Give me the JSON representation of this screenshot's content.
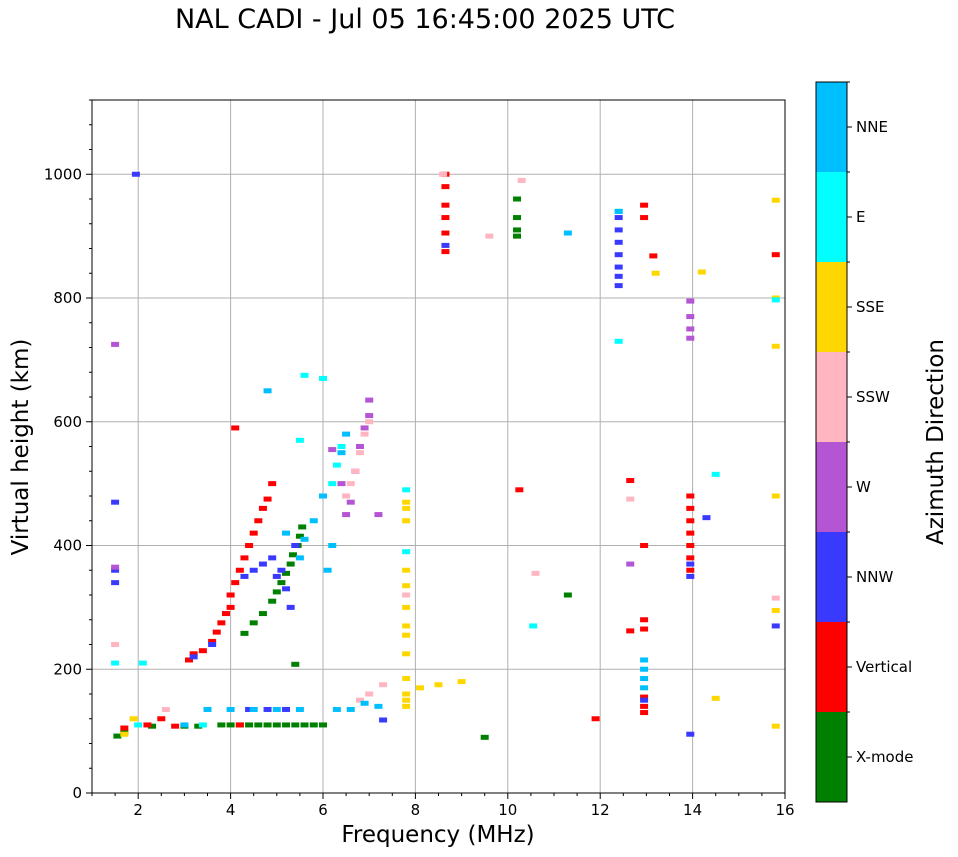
{
  "chart_data": {
    "type": "scatter",
    "title": "NAL CADI - Jul 05 16:45:00 2025 UTC",
    "xlabel": "Frequency (MHz)",
    "ylabel": "Virtual height (km)",
    "xlim": [
      1,
      16
    ],
    "ylim": [
      0,
      1120
    ],
    "xticks": [
      2,
      4,
      6,
      8,
      10,
      12,
      14,
      16
    ],
    "yticks": [
      0,
      200,
      400,
      600,
      800,
      1000
    ],
    "grid": true,
    "colorbar": {
      "label": "Azimuth Direction",
      "categories": [
        {
          "name": "X-mode",
          "color": "#008000"
        },
        {
          "name": "Vertical",
          "color": "#ff0000"
        },
        {
          "name": "NNW",
          "color": "#3a3aff"
        },
        {
          "name": "W",
          "color": "#b455d4"
        },
        {
          "name": "SSW",
          "color": "#ffb6c1"
        },
        {
          "name": "SSE",
          "color": "#ffd700"
        },
        {
          "name": "E",
          "color": "#00ffff"
        },
        {
          "name": "NNE",
          "color": "#00bfff"
        }
      ]
    },
    "series": [
      {
        "name": "X-mode",
        "points": [
          [
            1.55,
            92
          ],
          [
            1.7,
            98
          ],
          [
            2.3,
            108
          ],
          [
            3.0,
            108
          ],
          [
            3.3,
            108
          ],
          [
            3.8,
            110
          ],
          [
            4.0,
            110
          ],
          [
            4.2,
            110
          ],
          [
            4.4,
            110
          ],
          [
            4.6,
            110
          ],
          [
            4.8,
            110
          ],
          [
            5.0,
            110
          ],
          [
            5.2,
            110
          ],
          [
            5.4,
            110
          ],
          [
            5.6,
            110
          ],
          [
            5.8,
            110
          ],
          [
            6.0,
            110
          ],
          [
            4.3,
            258
          ],
          [
            4.5,
            275
          ],
          [
            4.7,
            290
          ],
          [
            4.9,
            310
          ],
          [
            5.0,
            325
          ],
          [
            5.1,
            340
          ],
          [
            5.2,
            355
          ],
          [
            5.3,
            370
          ],
          [
            5.35,
            385
          ],
          [
            5.45,
            400
          ],
          [
            5.5,
            415
          ],
          [
            5.55,
            430
          ],
          [
            5.4,
            208
          ],
          [
            9.5,
            90
          ],
          [
            10.2,
            900
          ],
          [
            10.2,
            910
          ],
          [
            10.2,
            930
          ],
          [
            10.2,
            960
          ],
          [
            11.3,
            320
          ]
        ]
      },
      {
        "name": "Vertical",
        "points": [
          [
            1.7,
            105
          ],
          [
            2.2,
            110
          ],
          [
            2.5,
            120
          ],
          [
            2.8,
            108
          ],
          [
            3.1,
            215
          ],
          [
            3.2,
            225
          ],
          [
            3.4,
            230
          ],
          [
            3.6,
            245
          ],
          [
            3.7,
            260
          ],
          [
            3.8,
            275
          ],
          [
            3.9,
            290
          ],
          [
            4.0,
            300
          ],
          [
            4.0,
            320
          ],
          [
            4.1,
            340
          ],
          [
            4.2,
            360
          ],
          [
            4.3,
            380
          ],
          [
            4.4,
            400
          ],
          [
            4.5,
            420
          ],
          [
            4.6,
            440
          ],
          [
            4.7,
            460
          ],
          [
            4.8,
            475
          ],
          [
            4.9,
            500
          ],
          [
            4.1,
            590
          ],
          [
            4.2,
            110
          ],
          [
            8.65,
            875
          ],
          [
            8.65,
            905
          ],
          [
            8.65,
            930
          ],
          [
            8.65,
            950
          ],
          [
            8.65,
            980
          ],
          [
            8.65,
            1000
          ],
          [
            10.25,
            490
          ],
          [
            11.9,
            120
          ],
          [
            12.65,
            262
          ],
          [
            12.65,
            505
          ],
          [
            12.95,
            130
          ],
          [
            12.95,
            140
          ],
          [
            12.95,
            155
          ],
          [
            12.95,
            265
          ],
          [
            12.95,
            280
          ],
          [
            12.95,
            400
          ],
          [
            12.95,
            930
          ],
          [
            12.95,
            950
          ],
          [
            13.15,
            868
          ],
          [
            13.95,
            360
          ],
          [
            13.95,
            380
          ],
          [
            13.95,
            400
          ],
          [
            13.95,
            420
          ],
          [
            13.95,
            440
          ],
          [
            13.95,
            460
          ],
          [
            13.95,
            480
          ],
          [
            15.8,
            870
          ]
        ]
      },
      {
        "name": "NNW",
        "points": [
          [
            1.5,
            340
          ],
          [
            1.5,
            360
          ],
          [
            1.5,
            470
          ],
          [
            1.95,
            1000
          ],
          [
            3.2,
            220
          ],
          [
            3.6,
            240
          ],
          [
            4.3,
            350
          ],
          [
            4.5,
            360
          ],
          [
            4.7,
            370
          ],
          [
            4.9,
            380
          ],
          [
            5.0,
            350
          ],
          [
            5.1,
            360
          ],
          [
            5.2,
            330
          ],
          [
            5.3,
            300
          ],
          [
            5.4,
            400
          ],
          [
            4.4,
            135
          ],
          [
            4.8,
            135
          ],
          [
            5.2,
            135
          ],
          [
            7.3,
            118
          ],
          [
            12.4,
            820
          ],
          [
            12.4,
            835
          ],
          [
            12.4,
            850
          ],
          [
            12.4,
            870
          ],
          [
            12.4,
            890
          ],
          [
            12.4,
            910
          ],
          [
            12.4,
            930
          ],
          [
            12.95,
            150
          ],
          [
            13.95,
            95
          ],
          [
            13.95,
            350
          ],
          [
            13.95,
            370
          ],
          [
            14.3,
            445
          ],
          [
            15.8,
            270
          ],
          [
            8.65,
            885
          ]
        ]
      },
      {
        "name": "W",
        "points": [
          [
            1.5,
            725
          ],
          [
            1.5,
            365
          ],
          [
            6.2,
            555
          ],
          [
            6.4,
            500
          ],
          [
            6.5,
            450
          ],
          [
            6.6,
            470
          ],
          [
            6.7,
            520
          ],
          [
            6.8,
            560
          ],
          [
            6.9,
            590
          ],
          [
            7.0,
            610
          ],
          [
            7.0,
            635
          ],
          [
            7.2,
            450
          ],
          [
            12.65,
            370
          ],
          [
            13.95,
            735
          ],
          [
            13.95,
            750
          ],
          [
            13.95,
            770
          ],
          [
            13.95,
            795
          ]
        ]
      },
      {
        "name": "SSW",
        "points": [
          [
            1.5,
            240
          ],
          [
            2.6,
            135
          ],
          [
            6.5,
            480
          ],
          [
            6.6,
            500
          ],
          [
            6.7,
            520
          ],
          [
            6.8,
            550
          ],
          [
            6.9,
            580
          ],
          [
            7.0,
            600
          ],
          [
            6.8,
            150
          ],
          [
            7.0,
            160
          ],
          [
            7.3,
            175
          ],
          [
            7.8,
            320
          ],
          [
            8.6,
            1000
          ],
          [
            9.6,
            900
          ],
          [
            10.3,
            990
          ],
          [
            10.6,
            355
          ],
          [
            12.65,
            475
          ],
          [
            15.8,
            315
          ]
        ]
      },
      {
        "name": "SSE",
        "points": [
          [
            1.7,
            95
          ],
          [
            1.9,
            120
          ],
          [
            7.8,
            140
          ],
          [
            7.8,
            150
          ],
          [
            7.8,
            160
          ],
          [
            7.8,
            185
          ],
          [
            7.8,
            225
          ],
          [
            7.8,
            255
          ],
          [
            7.8,
            270
          ],
          [
            7.8,
            300
          ],
          [
            7.8,
            335
          ],
          [
            7.8,
            360
          ],
          [
            7.8,
            440
          ],
          [
            7.8,
            460
          ],
          [
            7.8,
            470
          ],
          [
            8.1,
            170
          ],
          [
            8.5,
            175
          ],
          [
            9.0,
            180
          ],
          [
            13.2,
            840
          ],
          [
            14.2,
            842
          ],
          [
            14.5,
            153
          ],
          [
            15.8,
            108
          ],
          [
            15.8,
            295
          ],
          [
            15.8,
            480
          ],
          [
            15.8,
            722
          ],
          [
            15.8,
            800
          ],
          [
            15.8,
            958
          ]
        ]
      },
      {
        "name": "E",
        "points": [
          [
            1.5,
            210
          ],
          [
            2.1,
            210
          ],
          [
            2.0,
            110
          ],
          [
            3.4,
            110
          ],
          [
            5.6,
            675
          ],
          [
            5.5,
            570
          ],
          [
            6.0,
            670
          ],
          [
            6.2,
            500
          ],
          [
            6.3,
            530
          ],
          [
            6.4,
            560
          ],
          [
            7.8,
            390
          ],
          [
            7.8,
            490
          ],
          [
            10.55,
            270
          ],
          [
            12.4,
            730
          ],
          [
            12.4,
            940
          ],
          [
            14.5,
            515
          ],
          [
            15.8,
            797
          ]
        ]
      },
      {
        "name": "NNE",
        "points": [
          [
            3.0,
            110
          ],
          [
            3.5,
            135
          ],
          [
            4.0,
            135
          ],
          [
            4.5,
            135
          ],
          [
            5.0,
            135
          ],
          [
            5.5,
            135
          ],
          [
            6.3,
            135
          ],
          [
            6.6,
            135
          ],
          [
            6.9,
            145
          ],
          [
            7.2,
            140
          ],
          [
            5.5,
            380
          ],
          [
            5.6,
            410
          ],
          [
            5.8,
            440
          ],
          [
            6.0,
            480
          ],
          [
            6.1,
            360
          ],
          [
            6.2,
            400
          ],
          [
            6.4,
            550
          ],
          [
            6.5,
            580
          ],
          [
            4.8,
            650
          ],
          [
            5.2,
            420
          ],
          [
            11.3,
            905
          ],
          [
            12.4,
            940
          ],
          [
            12.95,
            170
          ],
          [
            12.95,
            185
          ],
          [
            12.95,
            200
          ],
          [
            12.95,
            215
          ]
        ]
      }
    ]
  }
}
